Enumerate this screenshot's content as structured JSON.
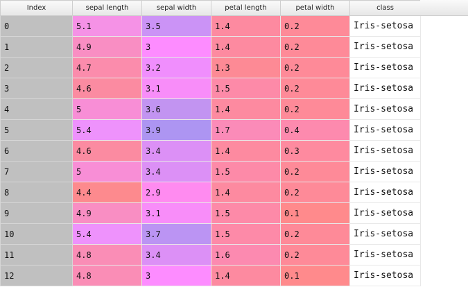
{
  "table": {
    "columns": [
      {
        "key": "index",
        "label": "Index"
      },
      {
        "key": "sepal_length",
        "label": "sepal length"
      },
      {
        "key": "sepal_width",
        "label": "sepal width"
      },
      {
        "key": "petal_length",
        "label": "petal length"
      },
      {
        "key": "petal_width",
        "label": "petal width"
      },
      {
        "key": "class",
        "label": "class"
      }
    ],
    "rows": [
      {
        "index": "0",
        "sepal_length": "5.1",
        "sepal_width": "3.5",
        "petal_length": "1.4",
        "petal_width": "0.2",
        "class": "Iris-setosa",
        "colors": [
          "#f592e6",
          "#cb93f6",
          "#fd8aa0",
          "#fe8a98"
        ]
      },
      {
        "index": "1",
        "sepal_length": "4.9",
        "sepal_width": "3",
        "petal_length": "1.4",
        "petal_width": "0.2",
        "class": "Iris-setosa",
        "colors": [
          "#f98ec3",
          "#fd8cff",
          "#fd8aa0",
          "#fe8a98"
        ]
      },
      {
        "index": "2",
        "sepal_length": "4.7",
        "sepal_width": "3.2",
        "petal_length": "1.3",
        "petal_width": "0.2",
        "class": "Iris-setosa",
        "colors": [
          "#fb8cac",
          "#f08efd",
          "#fd8a95",
          "#fe8a98"
        ]
      },
      {
        "index": "3",
        "sepal_length": "4.6",
        "sepal_width": "3.1",
        "petal_length": "1.5",
        "petal_width": "0.2",
        "class": "Iris-setosa",
        "colors": [
          "#fb8ba1",
          "#f88df9",
          "#fd8aa8",
          "#fe8a98"
        ]
      },
      {
        "index": "4",
        "sepal_length": "5",
        "sepal_width": "3.6",
        "petal_length": "1.4",
        "petal_width": "0.2",
        "class": "Iris-setosa",
        "colors": [
          "#f88ed6",
          "#c294f1",
          "#fd8aa0",
          "#fe8a98"
        ]
      },
      {
        "index": "5",
        "sepal_length": "5.4",
        "sepal_width": "3.9",
        "petal_length": "1.7",
        "petal_width": "0.4",
        "class": "Iris-setosa",
        "colors": [
          "#ee92fc",
          "#ad95f2",
          "#fb8bb8",
          "#fd8aae"
        ]
      },
      {
        "index": "6",
        "sepal_length": "4.6",
        "sepal_width": "3.4",
        "petal_length": "1.4",
        "petal_width": "0.3",
        "class": "Iris-setosa",
        "colors": [
          "#fb8ba1",
          "#dc90f6",
          "#fd8aa0",
          "#fe8a9f"
        ]
      },
      {
        "index": "7",
        "sepal_length": "5",
        "sepal_width": "3.4",
        "petal_length": "1.5",
        "petal_width": "0.2",
        "class": "Iris-setosa",
        "colors": [
          "#f88ed6",
          "#dc90f6",
          "#fd8aa8",
          "#fe8a98"
        ]
      },
      {
        "index": "8",
        "sepal_length": "4.4",
        "sepal_width": "2.9",
        "petal_length": "1.4",
        "petal_width": "0.2",
        "class": "Iris-setosa",
        "colors": [
          "#fd8a8e",
          "#ff8bf0",
          "#fd8aa0",
          "#fe8a98"
        ]
      },
      {
        "index": "9",
        "sepal_length": "4.9",
        "sepal_width": "3.1",
        "petal_length": "1.5",
        "petal_width": "0.1",
        "class": "Iris-setosa",
        "colors": [
          "#f98ec3",
          "#f88df9",
          "#fd8aa8",
          "#ff8a8c"
        ]
      },
      {
        "index": "10",
        "sepal_length": "5.4",
        "sepal_width": "3.7",
        "petal_length": "1.5",
        "petal_width": "0.2",
        "class": "Iris-setosa",
        "colors": [
          "#ee92fc",
          "#bb94f3",
          "#fd8aa8",
          "#fe8a98"
        ]
      },
      {
        "index": "11",
        "sepal_length": "4.8",
        "sepal_width": "3.4",
        "petal_length": "1.6",
        "petal_width": "0.2",
        "class": "Iris-setosa",
        "colors": [
          "#fa8db6",
          "#dc90f6",
          "#fc8ab0",
          "#fe8a98"
        ]
      },
      {
        "index": "12",
        "sepal_length": "4.8",
        "sepal_width": "3",
        "petal_length": "1.4",
        "petal_width": "0.1",
        "class": "Iris-setosa",
        "colors": [
          "#fa8db6",
          "#fd8cff",
          "#fd8aa0",
          "#ff8a8c"
        ]
      }
    ]
  }
}
